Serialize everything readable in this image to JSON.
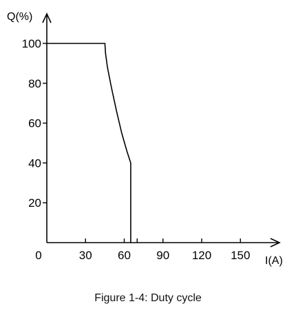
{
  "chart_data": {
    "type": "line",
    "title": "",
    "xlabel": "I(A)",
    "ylabel": "Q(%)",
    "xlim": [
      0,
      165
    ],
    "ylim": [
      0,
      110
    ],
    "x_ticks": [
      {
        "value": 0,
        "label": "0"
      },
      {
        "value": 30,
        "label": "30"
      },
      {
        "value": 60,
        "label": "60"
      },
      {
        "value": 90,
        "label": "90"
      },
      {
        "value": 120,
        "label": "120"
      },
      {
        "value": 150,
        "label": "150"
      }
    ],
    "x_minor_ticks": [
      70
    ],
    "y_ticks": [
      {
        "value": 20,
        "label": "20"
      },
      {
        "value": 40,
        "label": "40"
      },
      {
        "value": 60,
        "label": "60"
      },
      {
        "value": 80,
        "label": "80"
      },
      {
        "value": 100,
        "label": "100"
      }
    ],
    "grid": false,
    "series": [
      {
        "x": [
          0,
          45,
          45.5,
          47,
          50,
          54,
          58,
          62,
          65,
          65,
          65.5
        ],
        "y": [
          100,
          100,
          95,
          88,
          78,
          66,
          55,
          46,
          40,
          0,
          0
        ],
        "color": "#000000"
      }
    ],
    "caption": "Figure 1-4: Duty cycle"
  }
}
